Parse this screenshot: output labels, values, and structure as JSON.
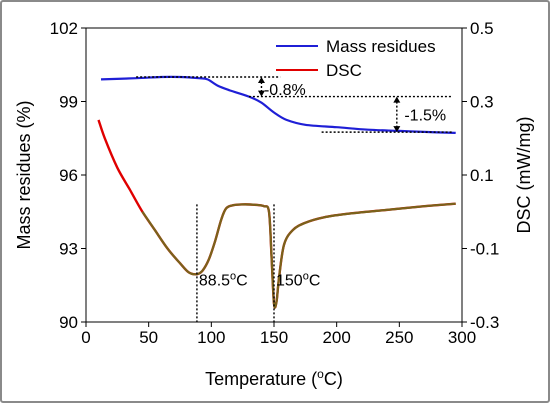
{
  "chart_data": {
    "type": "line",
    "title": "",
    "xlabel": "Temperature (°C)",
    "xlabel_parts": {
      "prefix": "Temperature (",
      "sup": "o",
      "suffix": "C)"
    },
    "ylabel": "Mass residues (%)",
    "y2label": "DSC (mW/mg)",
    "xlim": [
      0,
      300
    ],
    "ylim": [
      90,
      102
    ],
    "y2lim": [
      -0.3,
      0.5
    ],
    "xticks": [
      "0",
      "50",
      "100",
      "150",
      "200",
      "250",
      "300"
    ],
    "yticks": [
      "102",
      "99",
      "96",
      "93",
      "90"
    ],
    "y2ticks": [
      "0.5",
      "0.3",
      "0.1",
      "-0.1",
      "-0.3"
    ],
    "legend_position": "top-right",
    "grid": false,
    "series": [
      {
        "name": "Mass residues",
        "color": "#1f1fd6",
        "axis": "left",
        "x": [
          12,
          40,
          60,
          75,
          90,
          97,
          105,
          115,
          130,
          140,
          150,
          160,
          175,
          200,
          225,
          250,
          275,
          295
        ],
        "y": [
          99.9,
          99.95,
          100.0,
          100.0,
          99.95,
          99.9,
          99.65,
          99.45,
          99.2,
          98.95,
          98.55,
          98.25,
          98.05,
          97.95,
          97.85,
          97.8,
          97.75,
          97.72
        ]
      },
      {
        "name": "DSC",
        "color": "#e00000",
        "overlay_color": "#6e6e1e",
        "axis": "right",
        "x": [
          10,
          15,
          25,
          35,
          45,
          55,
          65,
          75,
          82,
          88.5,
          93,
          98,
          103,
          108,
          112,
          118,
          125,
          135,
          142,
          146,
          148,
          150,
          152,
          154,
          158,
          165,
          175,
          190,
          210,
          240,
          270,
          295
        ],
        "y": [
          0.25,
          0.2,
          0.12,
          0.06,
          0.0,
          -0.05,
          -0.1,
          -0.14,
          -0.165,
          -0.17,
          -0.16,
          -0.13,
          -0.08,
          -0.02,
          0.01,
          0.018,
          0.02,
          0.019,
          0.015,
          0.0,
          -0.12,
          -0.25,
          -0.245,
          -0.18,
          -0.09,
          -0.05,
          -0.03,
          -0.015,
          -0.005,
          0.005,
          0.015,
          0.022
        ]
      }
    ],
    "annotations": {
      "mass_loss_1": "-0.8%",
      "mass_loss_2": "-1.5%",
      "peak_1": {
        "value": "88.5",
        "sup": "o",
        "unit": "C",
        "x": 88.5
      },
      "peak_2": {
        "value": "150",
        "sup": "o",
        "unit": "C",
        "x": 150
      }
    }
  }
}
